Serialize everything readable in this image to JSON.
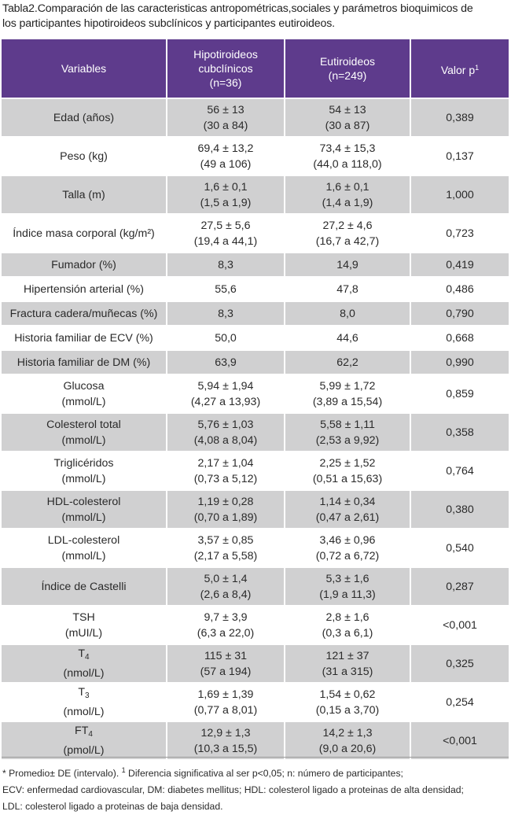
{
  "caption": {
    "line1": "Tabla2.Comparación de las caracteristicas antropométricas,sociales y parámetros bioquimicos de",
    "line2": "los participantes hipotiroideos subclínicos y participantes eutiroideos."
  },
  "header": {
    "col1": "Variables",
    "col2_l1": "Hipotiroideos",
    "col2_l2": "cubclínicos",
    "col2_l3": "(n=36)",
    "col3_l1": "Eutiroideos",
    "col3_l2": "(n=249)",
    "col4": "Valor p",
    "col4_sup": "1"
  },
  "rows": [
    {
      "var_a": "Edad (años)",
      "var_b": "",
      "h_mean": "56 ± 13",
      "h_range": "(30 a 84)",
      "e_mean": "54 ± 13",
      "e_range": "(30 a 87)",
      "p": "0,389"
    },
    {
      "var_a": "Peso (kg)",
      "var_b": "",
      "h_mean": "69,4 ± 13,2",
      "h_range": "(49 a 106)",
      "e_mean": "73,4 ± 15,3",
      "e_range": "(44,0 a 118,0)",
      "p": "0,137"
    },
    {
      "var_a": "Talla (m)",
      "var_b": "",
      "h_mean": "1,6 ± 0,1",
      "h_range": "(1,5 a 1,9)",
      "e_mean": "1,6 ± 0,1",
      "e_range": "(1,4 a 1,9)",
      "p": "1,000"
    },
    {
      "var_a": "Índice masa corporal (kg/m²)",
      "var_b": "",
      "h_mean": "27,5 ± 5,6",
      "h_range": "(19,4 a 44,1)",
      "e_mean": "27,2 ± 4,6",
      "e_range": "(16,7 a 42,7)",
      "p": "0,723"
    },
    {
      "var_a": "Fumador (%)",
      "h": "8,3",
      "e": "14,9",
      "p": "0,419"
    },
    {
      "var_a": "Hipertensión arterial (%)",
      "h": "55,6",
      "e": "47,8",
      "p": "0,486"
    },
    {
      "var_a": "Fractura cadera/muñecas (%)",
      "h": "8,3",
      "e": "8,0",
      "p": "0,790"
    },
    {
      "var_a": "Historia familiar de ECV (%)",
      "h": "50,0",
      "e": "44,6",
      "p": "0,668"
    },
    {
      "var_a": "Historia familiar de DM (%)",
      "h": "63,9",
      "e": "62,2",
      "p": "0,990"
    },
    {
      "var_a": "Glucosa",
      "var_b": "(mmol/L)",
      "h_mean": "5,94 ± 1,94",
      "h_range": "(4,27 a 13,93)",
      "e_mean": "5,99 ± 1,72",
      "e_range": "(3,89 a 15,54)",
      "p": "0,859"
    },
    {
      "var_a": "Colesterol total",
      "var_b": "(mmol/L)",
      "h_mean": "5,76 ± 1,03",
      "h_range": "(4,08 a 8,04)",
      "e_mean": "5,58 ± 1,11",
      "e_range": "(2,53 a 9,92)",
      "p": "0,358"
    },
    {
      "var_a": "Triglicéridos",
      "var_b": "(mmol/L)",
      "h_mean": "2,17 ± 1,04",
      "h_range": "(0,73 a 5,12)",
      "e_mean": "2,25 ± 1,52",
      "e_range": "(0,51 a 15,63)",
      "p": "0,764"
    },
    {
      "var_a": "HDL-colesterol",
      "var_b": "(mmol/L)",
      "h_mean": "1,19 ± 0,28",
      "h_range": "(0,70 a 1,89)",
      "e_mean": "1,14 ± 0,34",
      "e_range": "(0,47 a 2,61)",
      "p": "0,380"
    },
    {
      "var_a": "LDL-colesterol",
      "var_b": "(mmol/L)",
      "h_mean": "3,57 ± 0,85",
      "h_range": "(2,17 a 5,58)",
      "e_mean": "3,46 ± 0,96",
      "e_range": "(0,72 a 6,72)",
      "p": "0,540"
    },
    {
      "var_a": "Índice de Castelli",
      "var_b": "",
      "h_mean": "5,0 ± 1,4",
      "h_range": "(2,6 a 8,4)",
      "e_mean": "5,3 ± 1,6",
      "e_range": "(1,9 a 11,3)",
      "p": "0,287"
    },
    {
      "var_a": "TSH",
      "var_b": "(mUI/L)",
      "h_mean": "9,7 ± 3,9",
      "h_range": "(6,3 a 22,0)",
      "e_mean": "2,8 ± 1,6",
      "e_range": "(0,3 a 6,1)",
      "p": "<0,001"
    },
    {
      "var_a": "T",
      "var_sub": "4",
      "var_b": "(nmol/L)",
      "h_mean": "115 ± 31",
      "h_range": "(57 a 194)",
      "e_mean": "121 ± 37",
      "e_range": "(31 a 315)",
      "p": "0,325"
    },
    {
      "var_a": "T",
      "var_sub": "3",
      "var_b": "(nmol/L)",
      "h_mean": "1,69 ± 1,39",
      "h_range": "(0,77 a 8,01)",
      "e_mean": "1,54 ± 0,62",
      "e_range": "(0,15 a 3,70)",
      "p": "0,254"
    },
    {
      "var_a": "FT",
      "var_sub": "4",
      "var_b": "(pmol/L)",
      "h_mean": "12,9 ± 1,3",
      "h_range": "(10,3 a 15,5)",
      "e_mean": "14,2 ± 1,3",
      "e_range": "(9,0 a 20,6)",
      "p": "<0,001"
    }
  ],
  "footnote": {
    "l1a": "* Promedio± DE (intervalo). ",
    "l1sup": "1",
    "l1b": " Diferencia significativa al ser p<0,05; n: número de participantes;",
    "l2": "ECV: enfermedad cardiovascular, DM: diabetes mellitus; HDL: colesterol ligado a proteinas de alta densidad;",
    "l3": "LDL: colesterol ligado a proteinas de baja densidad."
  },
  "colors": {
    "header_bg": "#5e3b8c",
    "row_shade": "#d0d0d1",
    "row_plain": "#ffffff"
  }
}
